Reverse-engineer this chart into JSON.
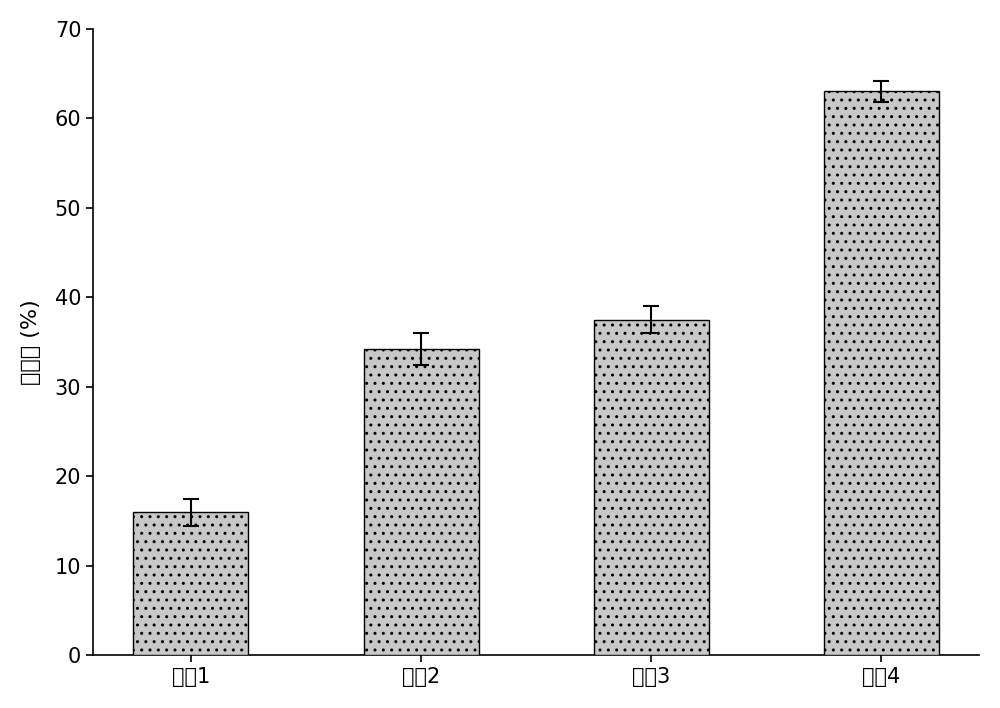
{
  "categories": [
    "处琛1",
    "处琛2",
    "处琛3",
    "处琛4"
  ],
  "values": [
    16.0,
    34.2,
    37.5,
    63.0
  ],
  "errors": [
    1.5,
    1.8,
    1.5,
    1.2
  ],
  "bar_color": "#c8c8c8",
  "bar_edgecolor": "#000000",
  "ylabel": "去除率 (%)",
  "ylim": [
    0,
    70
  ],
  "yticks": [
    0,
    10,
    20,
    30,
    40,
    50,
    60,
    70
  ],
  "background_color": "#ffffff",
  "bar_width": 0.5,
  "ylabel_fontsize": 16,
  "tick_fontsize": 15,
  "hatch": ".."
}
